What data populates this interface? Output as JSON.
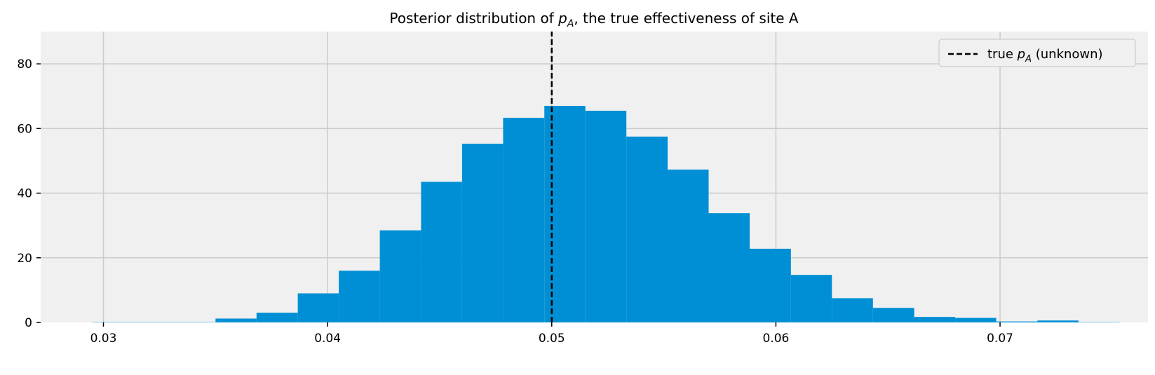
{
  "chart_data": {
    "type": "bar",
    "title_prefix": "Posterior distribution of ",
    "title_symbol": "p",
    "title_subscript": "A",
    "title_suffix": ", the true effectiveness of site A",
    "xlim": [
      0.0272,
      0.0766
    ],
    "ylim": [
      0,
      90
    ],
    "x_ticks": [
      0.03,
      0.04,
      0.05,
      0.06,
      0.07
    ],
    "x_tick_labels": [
      "0.03",
      "0.04",
      "0.05",
      "0.06",
      "0.07"
    ],
    "y_ticks": [
      0,
      20,
      40,
      60,
      80
    ],
    "y_tick_labels": [
      "0",
      "20",
      "40",
      "60",
      "80"
    ],
    "grid": true,
    "bar_color": "#008fd5",
    "background_color": "#f0f0f0",
    "grid_color": "#cbcbcb",
    "bins": [
      {
        "x0": 0.0295,
        "x1": 0.03133,
        "value": 0.1
      },
      {
        "x0": 0.03133,
        "x1": 0.03317,
        "value": 0.1
      },
      {
        "x0": 0.03317,
        "x1": 0.035,
        "value": 0.1
      },
      {
        "x0": 0.035,
        "x1": 0.03683,
        "value": 1.2
      },
      {
        "x0": 0.03683,
        "x1": 0.03867,
        "value": 3.0
      },
      {
        "x0": 0.03867,
        "x1": 0.0405,
        "value": 9.0
      },
      {
        "x0": 0.0405,
        "x1": 0.04233,
        "value": 16.0
      },
      {
        "x0": 0.04233,
        "x1": 0.04417,
        "value": 28.5
      },
      {
        "x0": 0.04417,
        "x1": 0.046,
        "value": 43.5
      },
      {
        "x0": 0.046,
        "x1": 0.04783,
        "value": 55.3
      },
      {
        "x0": 0.04783,
        "x1": 0.04967,
        "value": 63.3
      },
      {
        "x0": 0.04967,
        "x1": 0.0515,
        "value": 67.0
      },
      {
        "x0": 0.0515,
        "x1": 0.05333,
        "value": 65.5
      },
      {
        "x0": 0.05333,
        "x1": 0.05517,
        "value": 57.5
      },
      {
        "x0": 0.05517,
        "x1": 0.057,
        "value": 47.3
      },
      {
        "x0": 0.057,
        "x1": 0.05883,
        "value": 33.8
      },
      {
        "x0": 0.05883,
        "x1": 0.06067,
        "value": 22.8
      },
      {
        "x0": 0.06067,
        "x1": 0.0625,
        "value": 14.7
      },
      {
        "x0": 0.0625,
        "x1": 0.06433,
        "value": 7.5
      },
      {
        "x0": 0.06433,
        "x1": 0.06617,
        "value": 4.5
      },
      {
        "x0": 0.06617,
        "x1": 0.068,
        "value": 1.7
      },
      {
        "x0": 0.068,
        "x1": 0.06983,
        "value": 1.4
      },
      {
        "x0": 0.06983,
        "x1": 0.07167,
        "value": 0.3
      },
      {
        "x0": 0.07167,
        "x1": 0.0735,
        "value": 0.6
      },
      {
        "x0": 0.0735,
        "x1": 0.07533,
        "value": 0.1
      }
    ],
    "true_value_line": {
      "x": 0.05,
      "y_top": 90,
      "color": "#000000",
      "style": "dashed"
    },
    "legend": {
      "placement": "top-right",
      "label_prefix": "true ",
      "label_symbol": "p",
      "label_subscript": "A",
      "label_suffix": " (unknown)"
    }
  }
}
